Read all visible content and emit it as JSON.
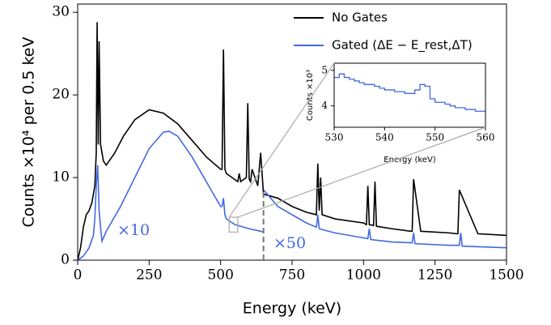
{
  "chart_data": [
    {
      "type": "line",
      "x_label": "Energy (keV)",
      "y_label": "Counts ×10⁴ per 0.5 keV",
      "xlim": [
        0,
        1500
      ],
      "ylim": [
        0,
        31
      ],
      "xticks": [
        0,
        250,
        500,
        750,
        1000,
        1250,
        1500
      ],
      "yticks": [
        0,
        10,
        20,
        30
      ],
      "legend": "upper right",
      "scale_change_x": 650,
      "annotations": [
        "×10",
        "×50"
      ],
      "series": [
        {
          "name": "No Gates",
          "color": "#000000",
          "x": [
            0,
            10,
            20,
            30,
            40,
            50,
            60,
            65,
            68,
            72,
            75,
            80,
            90,
            100,
            130,
            160,
            200,
            250,
            300,
            350,
            400,
            450,
            500,
            505,
            510,
            515,
            520,
            560,
            565,
            570,
            590,
            595,
            600,
            605,
            610,
            630,
            640,
            650,
            700,
            750,
            800,
            835,
            840,
            845,
            850,
            855,
            900,
            1000,
            1010,
            1015,
            1020,
            1035,
            1040,
            1045,
            1100,
            1165,
            1170,
            1175,
            1200,
            1300,
            1325,
            1330,
            1335,
            1400,
            1500
          ],
          "values": [
            0,
            1.5,
            4,
            5.5,
            6,
            7,
            9,
            13,
            28.8,
            14,
            26.5,
            14,
            12,
            11.5,
            13,
            15,
            17,
            18.2,
            17.8,
            16.5,
            14.5,
            12.5,
            11,
            11,
            25.5,
            11,
            10.5,
            9.5,
            10.5,
            9.5,
            10,
            19,
            9.8,
            9.5,
            11,
            9,
            13,
            8,
            7.5,
            6.5,
            5.8,
            5.5,
            11.7,
            6,
            10,
            5.5,
            5,
            4.5,
            4.3,
            9,
            4.3,
            4.2,
            9.5,
            4.1,
            3.8,
            3.5,
            3.5,
            9.8,
            3.5,
            3.3,
            3.2,
            3.2,
            8.5,
            3.2,
            3.0
          ]
        },
        {
          "name": "Gated (ΔE − E_rest,ΔT)",
          "color": "#4169e1",
          "x": [
            0,
            20,
            40,
            55,
            60,
            65,
            70,
            75,
            80,
            85,
            100,
            150,
            200,
            250,
            300,
            320,
            350,
            400,
            450,
            500,
            505,
            510,
            515,
            520,
            550,
            600,
            640,
            649,
            650,
            651,
            700,
            800,
            835,
            840,
            845,
            900,
            1000,
            1015,
            1020,
            1025,
            1100,
            1170,
            1175,
            1180,
            1300,
            1335,
            1340,
            1345,
            1500
          ],
          "values": [
            0,
            0.5,
            1.5,
            3,
            5,
            9,
            11.5,
            6,
            4,
            2.3,
            3.5,
            6.5,
            10,
            13.5,
            15.5,
            15.6,
            15,
            12.5,
            9.5,
            6.5,
            6.5,
            7.5,
            5.5,
            5,
            4.3,
            3.8,
            3.5,
            3.4,
            null,
            8.5,
            6.5,
            4.5,
            4,
            5.5,
            3.8,
            3.3,
            2.7,
            2.6,
            3.8,
            2.5,
            2.2,
            2.1,
            3.3,
            2.0,
            1.8,
            1.8,
            3.3,
            1.7,
            1.5
          ]
        }
      ]
    },
    {
      "type": "line",
      "x_label": "Energy (keV)",
      "y_label": "Counts ×10³",
      "xlim": [
        530,
        560
      ],
      "ylim": [
        3.4,
        5.2
      ],
      "xticks": [
        530,
        540,
        550,
        560
      ],
      "yticks": [
        4,
        5
      ],
      "step": true,
      "series": [
        {
          "color": "#4169e1",
          "x": [
            530,
            531,
            532,
            533,
            534,
            535,
            536,
            537,
            538,
            539,
            540,
            541,
            542,
            543,
            544,
            545,
            546,
            547,
            548,
            549,
            550,
            551,
            552,
            553,
            554,
            555,
            556,
            557,
            558,
            559,
            560
          ],
          "values": [
            4.8,
            4.9,
            4.8,
            4.75,
            4.7,
            4.65,
            4.6,
            4.6,
            4.55,
            4.5,
            4.45,
            4.45,
            4.4,
            4.4,
            4.35,
            4.35,
            4.45,
            4.6,
            4.55,
            4.2,
            4.1,
            4.1,
            4.05,
            4.0,
            3.95,
            3.95,
            3.9,
            3.9,
            3.85,
            3.85,
            3.8
          ]
        }
      ]
    }
  ]
}
